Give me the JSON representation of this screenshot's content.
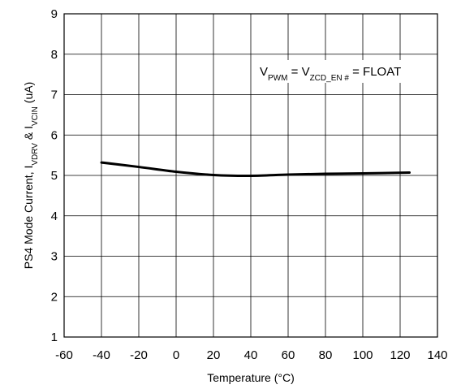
{
  "chart_data": {
    "type": "line",
    "xlabel": "Temperature (°C)",
    "ylabel": {
      "prefix": "PS4 Mode Current, I",
      "sub1": "VDRV",
      "mid": " & I",
      "sub2": "VCIN",
      "suffix": " (uA)"
    },
    "annotation": {
      "v1": "V",
      "sub1": "PWM",
      "eq1": " = V",
      "sub2": "ZCD_EN #",
      "eq2": " = FLOAT"
    },
    "xlim": [
      -60,
      140
    ],
    "ylim": [
      1,
      9
    ],
    "xticks": [
      "-60",
      "-40",
      "-20",
      "0",
      "20",
      "40",
      "60",
      "80",
      "100",
      "120",
      "140"
    ],
    "yticks": [
      "1",
      "2",
      "3",
      "4",
      "5",
      "6",
      "7",
      "8",
      "9"
    ],
    "grid": true,
    "series": [
      {
        "color": "#000000",
        "x": [
          -40,
          -20,
          0,
          20,
          40,
          60,
          80,
          100,
          125
        ],
        "y": [
          5.32,
          5.21,
          5.09,
          5.01,
          4.99,
          5.02,
          5.04,
          5.05,
          5.07
        ]
      }
    ]
  }
}
